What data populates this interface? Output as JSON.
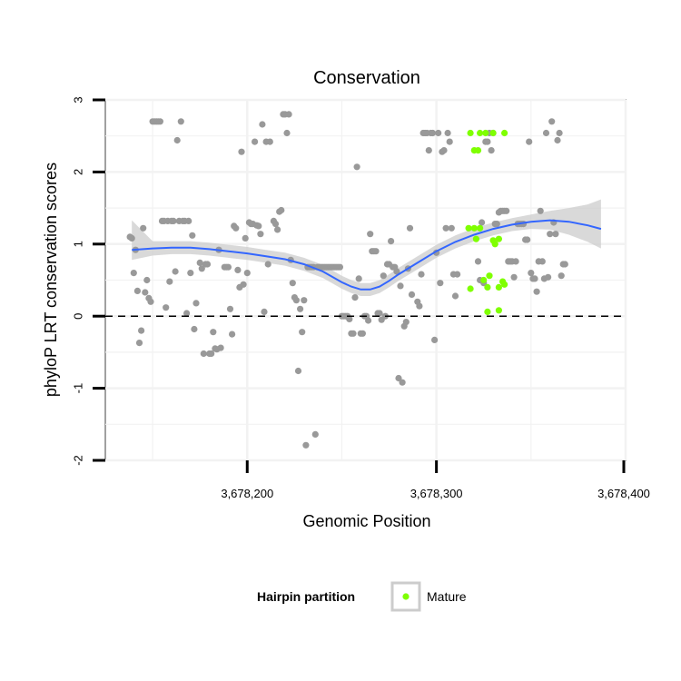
{
  "chart_data": {
    "type": "scatter",
    "title": "Conservation",
    "xlabel": "Genomic Position",
    "ylabel": "phyloP LRT conservation scores",
    "xlim": [
      3678125,
      3678400
    ],
    "ylim": [
      -2,
      3
    ],
    "x_ticks": [
      {
        "value": 3678200,
        "label": "3,678,200"
      },
      {
        "value": 3678300,
        "label": "3,678,300"
      },
      {
        "value": 3678400,
        "label": "3,678,400"
      }
    ],
    "y_ticks": [
      {
        "value": -2,
        "label": "-2"
      },
      {
        "value": -1,
        "label": "-1"
      },
      {
        "value": 0,
        "label": "0"
      },
      {
        "value": 1,
        "label": "1"
      },
      {
        "value": 2,
        "label": "2"
      },
      {
        "value": 3,
        "label": "3"
      }
    ],
    "grid": true,
    "reference_line": {
      "y": 0,
      "style": "dashed",
      "color": "#000000"
    },
    "legend": {
      "title": "Hairpin partition",
      "position": "bottom",
      "entries": [
        {
          "label": "Mature",
          "color": "#7fff00"
        }
      ]
    },
    "colors": {
      "points": "#999999",
      "mature": "#7fff00",
      "smooth": "#3366ff",
      "band": "#cccccc",
      "panel": "#ffffff",
      "border": "#808080"
    },
    "smooth": {
      "x": [
        3678139,
        3678150,
        3678160,
        3678170,
        3678180,
        3678190,
        3678200,
        3678210,
        3678220,
        3678230,
        3678240,
        3678250,
        3678255,
        3678260,
        3678265,
        3678270,
        3678275,
        3678280,
        3678290,
        3678300,
        3678310,
        3678320,
        3678330,
        3678340,
        3678350,
        3678360,
        3678370,
        3678380,
        3678387
      ],
      "y": [
        0.92,
        0.94,
        0.95,
        0.95,
        0.93,
        0.9,
        0.87,
        0.83,
        0.79,
        0.72,
        0.62,
        0.47,
        0.41,
        0.37,
        0.37,
        0.41,
        0.49,
        0.58,
        0.74,
        0.9,
        1.03,
        1.13,
        1.21,
        1.27,
        1.31,
        1.33,
        1.31,
        1.26,
        1.21
      ],
      "lower": [
        0.78,
        0.84,
        0.86,
        0.86,
        0.84,
        0.81,
        0.78,
        0.74,
        0.7,
        0.63,
        0.53,
        0.38,
        0.32,
        0.28,
        0.28,
        0.32,
        0.4,
        0.49,
        0.65,
        0.81,
        0.94,
        1.04,
        1.12,
        1.18,
        1.21,
        1.2,
        1.13,
        1.03,
        0.94
      ],
      "upper": [
        1.33,
        1.04,
        1.04,
        1.04,
        1.02,
        0.99,
        0.96,
        0.92,
        0.88,
        0.81,
        0.71,
        0.56,
        0.5,
        0.46,
        0.46,
        0.5,
        0.58,
        0.67,
        0.83,
        0.99,
        1.12,
        1.22,
        1.3,
        1.36,
        1.41,
        1.46,
        1.5,
        1.55,
        1.62
      ]
    },
    "series": [
      {
        "name": "",
        "color": "#999999",
        "points": [
          [
            3678138,
            1.1
          ],
          [
            3678139,
            1.08
          ],
          [
            3678140,
            0.6
          ],
          [
            3678141,
            0.92
          ],
          [
            3678142,
            0.35
          ],
          [
            3678143,
            -0.37
          ],
          [
            3678144,
            -0.2
          ],
          [
            3678145,
            1.22
          ],
          [
            3678146,
            0.33
          ],
          [
            3678147,
            0.5
          ],
          [
            3678148,
            0.25
          ],
          [
            3678149,
            0.2
          ],
          [
            3678150,
            2.7
          ],
          [
            3678151,
            2.7
          ],
          [
            3678152,
            2.7
          ],
          [
            3678153,
            2.7
          ],
          [
            3678154,
            2.7
          ],
          [
            3678155,
            1.32
          ],
          [
            3678156,
            1.32
          ],
          [
            3678157,
            0.12
          ],
          [
            3678158,
            1.32
          ],
          [
            3678159,
            0.48
          ],
          [
            3678160,
            1.32
          ],
          [
            3678161,
            1.32
          ],
          [
            3678162,
            0.62
          ],
          [
            3678163,
            2.44
          ],
          [
            3678164,
            1.32
          ],
          [
            3678165,
            2.7
          ],
          [
            3678166,
            1.32
          ],
          [
            3678167,
            1.32
          ],
          [
            3678168,
            0.04
          ],
          [
            3678169,
            1.32
          ],
          [
            3678170,
            0.6
          ],
          [
            3678171,
            1.12
          ],
          [
            3678172,
            -0.18
          ],
          [
            3678173,
            0.18
          ],
          [
            3678175,
            0.74
          ],
          [
            3678176,
            0.66
          ],
          [
            3678177,
            -0.52
          ],
          [
            3678178,
            0.72
          ],
          [
            3678179,
            0.72
          ],
          [
            3678180,
            -0.52
          ],
          [
            3678181,
            -0.52
          ],
          [
            3678182,
            -0.22
          ],
          [
            3678183,
            -0.45
          ],
          [
            3678184,
            -0.46
          ],
          [
            3678185,
            0.92
          ],
          [
            3678186,
            -0.44
          ],
          [
            3678188,
            0.68
          ],
          [
            3678189,
            0.68
          ],
          [
            3678190,
            0.68
          ],
          [
            3678191,
            0.1
          ],
          [
            3678192,
            -0.25
          ],
          [
            3678193,
            1.25
          ],
          [
            3678194,
            1.22
          ],
          [
            3678195,
            0.64
          ],
          [
            3678196,
            0.4
          ],
          [
            3678197,
            2.28
          ],
          [
            3678198,
            0.44
          ],
          [
            3678199,
            1.08
          ],
          [
            3678200,
            0.6
          ],
          [
            3678201,
            1.3
          ],
          [
            3678202,
            1.28
          ],
          [
            3678203,
            1.28
          ],
          [
            3678204,
            2.42
          ],
          [
            3678205,
            1.26
          ],
          [
            3678206,
            1.25
          ],
          [
            3678207,
            1.14
          ],
          [
            3678208,
            2.66
          ],
          [
            3678209,
            0.06
          ],
          [
            3678210,
            2.42
          ],
          [
            3678211,
            0.72
          ],
          [
            3678212,
            2.42
          ],
          [
            3678214,
            1.32
          ],
          [
            3678215,
            1.28
          ],
          [
            3678216,
            1.2
          ],
          [
            3678217,
            1.45
          ],
          [
            3678218,
            1.47
          ],
          [
            3678219,
            2.8
          ],
          [
            3678220,
            2.8
          ],
          [
            3678221,
            2.54
          ],
          [
            3678222,
            2.8
          ],
          [
            3678223,
            0.78
          ],
          [
            3678224,
            0.46
          ],
          [
            3678225,
            0.26
          ],
          [
            3678226,
            0.22
          ],
          [
            3678227,
            -0.76
          ],
          [
            3678228,
            0.1
          ],
          [
            3678229,
            -0.22
          ],
          [
            3678230,
            0.22
          ],
          [
            3678231,
            -1.79
          ],
          [
            3678232,
            0.68
          ],
          [
            3678233,
            0.68
          ],
          [
            3678234,
            0.68
          ],
          [
            3678235,
            0.68
          ],
          [
            3678236,
            -1.64
          ],
          [
            3678237,
            0.68
          ],
          [
            3678238,
            0.68
          ],
          [
            3678239,
            0.68
          ],
          [
            3678240,
            0.68
          ],
          [
            3678241,
            0.68
          ],
          [
            3678242,
            0.68
          ],
          [
            3678243,
            0.68
          ],
          [
            3678244,
            0.68
          ],
          [
            3678245,
            0.68
          ],
          [
            3678246,
            0.68
          ],
          [
            3678247,
            0.68
          ],
          [
            3678248,
            0.68
          ],
          [
            3678249,
            0.68
          ],
          [
            3678250,
            0.0
          ],
          [
            3678251,
            0.0
          ],
          [
            3678252,
            0.0
          ],
          [
            3678253,
            0.0
          ],
          [
            3678254,
            -0.04
          ],
          [
            3678255,
            -0.24
          ],
          [
            3678256,
            -0.24
          ],
          [
            3678257,
            0.26
          ],
          [
            3678258,
            2.07
          ],
          [
            3678259,
            0.52
          ],
          [
            3678260,
            -0.24
          ],
          [
            3678261,
            -0.24
          ],
          [
            3678262,
            0.0
          ],
          [
            3678263,
            0.0
          ],
          [
            3678264,
            -0.06
          ],
          [
            3678265,
            1.14
          ],
          [
            3678266,
            0.9
          ],
          [
            3678267,
            0.9
          ],
          [
            3678268,
            0.9
          ],
          [
            3678269,
            0.04
          ],
          [
            3678270,
            0.04
          ],
          [
            3678271,
            -0.05
          ],
          [
            3678272,
            0.56
          ],
          [
            3678273,
            0.0
          ],
          [
            3678274,
            0.72
          ],
          [
            3678275,
            0.72
          ],
          [
            3678276,
            1.04
          ],
          [
            3678277,
            0.68
          ],
          [
            3678278,
            0.68
          ],
          [
            3678279,
            0.62
          ],
          [
            3678280,
            -0.86
          ],
          [
            3678281,
            0.42
          ],
          [
            3678282,
            -0.92
          ],
          [
            3678283,
            -0.14
          ],
          [
            3678284,
            -0.08
          ],
          [
            3678285,
            0.66
          ],
          [
            3678286,
            1.22
          ],
          [
            3678287,
            0.3
          ],
          [
            3678290,
            0.2
          ],
          [
            3678291,
            0.14
          ],
          [
            3678292,
            0.58
          ],
          [
            3678293,
            2.54
          ],
          [
            3678294,
            2.54
          ],
          [
            3678295,
            2.54
          ],
          [
            3678296,
            2.3
          ],
          [
            3678297,
            2.54
          ],
          [
            3678298,
            2.54
          ],
          [
            3678299,
            -0.33
          ],
          [
            3678300,
            0.88
          ],
          [
            3678301,
            2.54
          ],
          [
            3678302,
            0.46
          ],
          [
            3678303,
            2.28
          ],
          [
            3678304,
            2.3
          ],
          [
            3678305,
            1.22
          ],
          [
            3678306,
            2.54
          ],
          [
            3678307,
            2.42
          ],
          [
            3678308,
            1.22
          ],
          [
            3678309,
            0.58
          ],
          [
            3678310,
            0.28
          ],
          [
            3678311,
            0.58
          ],
          [
            3678322,
            0.76
          ],
          [
            3678323,
            0.5
          ],
          [
            3678324,
            1.3
          ],
          [
            3678325,
            0.46
          ],
          [
            3678326,
            2.42
          ],
          [
            3678327,
            2.42
          ],
          [
            3678328,
            2.54
          ],
          [
            3678329,
            2.3
          ],
          [
            3678330,
            2.54
          ],
          [
            3678331,
            1.28
          ],
          [
            3678332,
            1.28
          ],
          [
            3678333,
            1.44
          ],
          [
            3678334,
            1.46
          ],
          [
            3678335,
            1.46
          ],
          [
            3678336,
            1.46
          ],
          [
            3678337,
            1.46
          ],
          [
            3678338,
            0.76
          ],
          [
            3678339,
            0.76
          ],
          [
            3678340,
            0.76
          ],
          [
            3678341,
            0.54
          ],
          [
            3678342,
            0.76
          ],
          [
            3678343,
            1.28
          ],
          [
            3678344,
            1.28
          ],
          [
            3678345,
            1.28
          ],
          [
            3678346,
            1.28
          ],
          [
            3678347,
            1.06
          ],
          [
            3678348,
            1.06
          ],
          [
            3678349,
            2.42
          ],
          [
            3678350,
            0.6
          ],
          [
            3678351,
            0.52
          ],
          [
            3678352,
            0.52
          ],
          [
            3678353,
            0.34
          ],
          [
            3678354,
            0.76
          ],
          [
            3678355,
            1.46
          ],
          [
            3678356,
            0.76
          ],
          [
            3678357,
            0.52
          ],
          [
            3678358,
            2.54
          ],
          [
            3678359,
            0.54
          ],
          [
            3678360,
            1.14
          ],
          [
            3678361,
            2.7
          ],
          [
            3678362,
            1.3
          ],
          [
            3678363,
            1.14
          ],
          [
            3678364,
            2.44
          ],
          [
            3678365,
            2.54
          ],
          [
            3678366,
            0.56
          ],
          [
            3678367,
            0.72
          ],
          [
            3678368,
            0.72
          ]
        ]
      },
      {
        "name": "Mature",
        "color": "#7fff00",
        "points": [
          [
            3678318,
            2.54
          ],
          [
            3678320,
            2.3
          ],
          [
            3678322,
            2.3
          ],
          [
            3678323,
            2.54
          ],
          [
            3678326,
            2.54
          ],
          [
            3678330,
            2.54
          ],
          [
            3678336,
            2.54
          ],
          [
            3678317,
            1.22
          ],
          [
            3678320,
            1.22
          ],
          [
            3678321,
            1.07
          ],
          [
            3678323,
            1.22
          ],
          [
            3678325,
            0.5
          ],
          [
            3678328,
            0.56
          ],
          [
            3678330,
            1.05
          ],
          [
            3678331,
            1.0
          ],
          [
            3678333,
            1.07
          ],
          [
            3678318,
            0.38
          ],
          [
            3678327,
            0.4
          ],
          [
            3678333,
            0.4
          ],
          [
            3678335,
            0.48
          ],
          [
            3678336,
            0.44
          ],
          [
            3678327,
            0.06
          ],
          [
            3678333,
            0.08
          ]
        ]
      }
    ]
  }
}
